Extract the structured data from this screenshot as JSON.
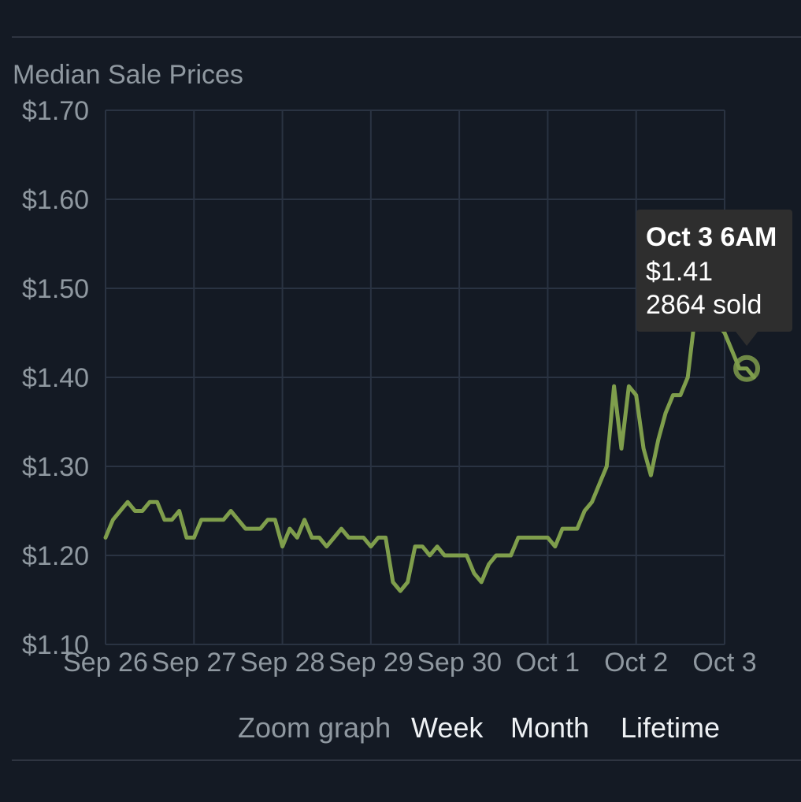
{
  "colors": {
    "background": "#141a24",
    "grid": "#2a3342",
    "axis_text": "#8f98a0",
    "line": "#7f9e4c",
    "tooltip_bg": "#2e2e2e",
    "tooltip_text": "#ffffff"
  },
  "zoom": {
    "label": "Zoom graph",
    "week": "Week",
    "month": "Month",
    "lifetime": "Lifetime"
  },
  "tooltip": {
    "date": "Oct 3 6AM",
    "price": "$1.41",
    "sold": "2864 sold"
  },
  "chart_data": {
    "type": "line",
    "title": "Median Sale Prices",
    "xlabel": "",
    "ylabel": "",
    "x_tick_labels": [
      "Sep 26",
      "Sep 27",
      "Sep 28",
      "Sep 29",
      "Sep 30",
      "Oct 1",
      "Oct 2",
      "Oct 3"
    ],
    "y_tick_labels": [
      "$1.70",
      "$1.60",
      "$1.50",
      "$1.40",
      "$1.30",
      "$1.20",
      "$1.10"
    ],
    "y_ticks": [
      1.7,
      1.6,
      1.5,
      1.4,
      1.3,
      1.2,
      1.1
    ],
    "ylim": [
      1.1,
      1.7
    ],
    "xlim": [
      "Sep 26 0AM",
      "Oct 3 8AM"
    ],
    "grid": true,
    "highlighted_point": {
      "x": "Oct 3 6AM",
      "y": 1.41
    },
    "series": [
      {
        "x": [
          "Sep 26 0AM",
          "Sep 26 2AM",
          "Sep 26 4AM",
          "Sep 26 6AM",
          "Sep 26 8AM",
          "Sep 26 10AM",
          "Sep 26 12PM",
          "Sep 26 2PM",
          "Sep 26 4PM",
          "Sep 26 6PM",
          "Sep 26 8PM",
          "Sep 26 10PM",
          "Sep 27 0AM",
          "Sep 27 2AM",
          "Sep 27 4AM",
          "Sep 27 6AM",
          "Sep 27 8AM",
          "Sep 27 10AM",
          "Sep 27 12PM",
          "Sep 27 2PM",
          "Sep 27 4PM",
          "Sep 27 6PM",
          "Sep 27 8PM",
          "Sep 27 10PM",
          "Sep 28 0AM",
          "Sep 28 2AM",
          "Sep 28 4AM",
          "Sep 28 6AM",
          "Sep 28 8AM",
          "Sep 28 10AM",
          "Sep 28 12PM",
          "Sep 28 2PM",
          "Sep 28 4PM",
          "Sep 28 6PM",
          "Sep 28 8PM",
          "Sep 28 10PM",
          "Sep 29 0AM",
          "Sep 29 2AM",
          "Sep 29 4AM",
          "Sep 29 6AM",
          "Sep 29 8AM",
          "Sep 29 10AM",
          "Sep 29 12PM",
          "Sep 29 2PM",
          "Sep 29 4PM",
          "Sep 29 6PM",
          "Sep 29 8PM",
          "Sep 29 10PM",
          "Sep 30 0AM",
          "Sep 30 2AM",
          "Sep 30 4AM",
          "Sep 30 6AM",
          "Sep 30 8AM",
          "Sep 30 10AM",
          "Sep 30 12PM",
          "Sep 30 2PM",
          "Sep 30 4PM",
          "Sep 30 6PM",
          "Sep 30 8PM",
          "Sep 30 10PM",
          "Oct 1 0AM",
          "Oct 1 2AM",
          "Oct 1 4AM",
          "Oct 1 6AM",
          "Oct 1 8AM",
          "Oct 1 10AM",
          "Oct 1 12PM",
          "Oct 1 2PM",
          "Oct 1 4PM",
          "Oct 1 6PM",
          "Oct 1 8PM",
          "Oct 1 10PM",
          "Oct 2 0AM",
          "Oct 2 2AM",
          "Oct 2 4AM",
          "Oct 2 6AM",
          "Oct 2 8AM",
          "Oct 2 10AM",
          "Oct 2 12PM",
          "Oct 2 2PM",
          "Oct 2 4PM",
          "Oct 2 6PM",
          "Oct 2 8PM",
          "Oct 2 10PM",
          "Oct 3 0AM",
          "Oct 3 2AM",
          "Oct 3 4AM",
          "Oct 3 6AM",
          "Oct 3 8AM"
        ],
        "y": [
          1.22,
          1.24,
          1.25,
          1.26,
          1.25,
          1.25,
          1.26,
          1.26,
          1.24,
          1.24,
          1.25,
          1.22,
          1.22,
          1.24,
          1.24,
          1.24,
          1.24,
          1.25,
          1.24,
          1.23,
          1.23,
          1.23,
          1.24,
          1.24,
          1.21,
          1.23,
          1.22,
          1.24,
          1.22,
          1.22,
          1.21,
          1.22,
          1.23,
          1.22,
          1.22,
          1.22,
          1.21,
          1.22,
          1.22,
          1.17,
          1.16,
          1.17,
          1.21,
          1.21,
          1.2,
          1.21,
          1.2,
          1.2,
          1.2,
          1.2,
          1.18,
          1.17,
          1.19,
          1.2,
          1.2,
          1.2,
          1.22,
          1.22,
          1.22,
          1.22,
          1.22,
          1.21,
          1.23,
          1.23,
          1.23,
          1.25,
          1.26,
          1.28,
          1.3,
          1.39,
          1.32,
          1.39,
          1.38,
          1.32,
          1.29,
          1.33,
          1.36,
          1.38,
          1.38,
          1.4,
          1.47,
          1.49,
          1.47,
          1.46,
          1.45,
          1.43,
          1.41,
          1.41,
          1.4
        ]
      }
    ]
  }
}
